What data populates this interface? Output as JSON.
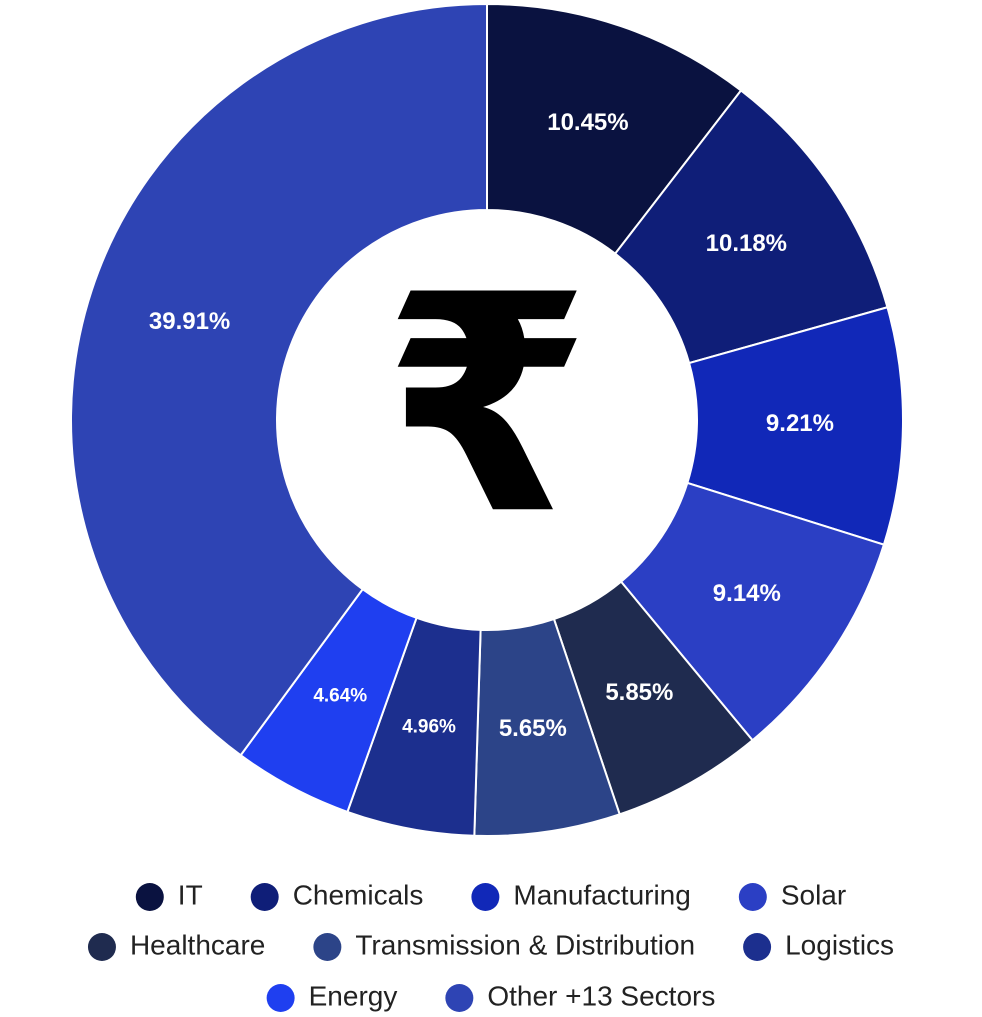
{
  "chart_data": {
    "type": "donut",
    "center_text": "₹",
    "categories": [
      "IT",
      "Chemicals",
      "Manufacturing",
      "Solar",
      "Healthcare",
      "Transmission & Distribution",
      "Logistics",
      "Energy",
      "Other +13 Sectors"
    ],
    "values": [
      10.45,
      10.18,
      9.21,
      9.14,
      5.85,
      5.65,
      4.96,
      4.64,
      39.91
    ],
    "value_labels": [
      "10.45%",
      "10.18%",
      "9.21%",
      "9.14%",
      "5.85%",
      "5.65%",
      "4.96%",
      "4.64%",
      "39.91%"
    ],
    "colors": [
      "#0a1240",
      "#0f1e78",
      "#1128b8",
      "#2b3fc4",
      "#1f2b4f",
      "#2c4488",
      "#1c2f8e",
      "#1f3ff0",
      "#2e44b4"
    ],
    "legend": "bottom"
  }
}
